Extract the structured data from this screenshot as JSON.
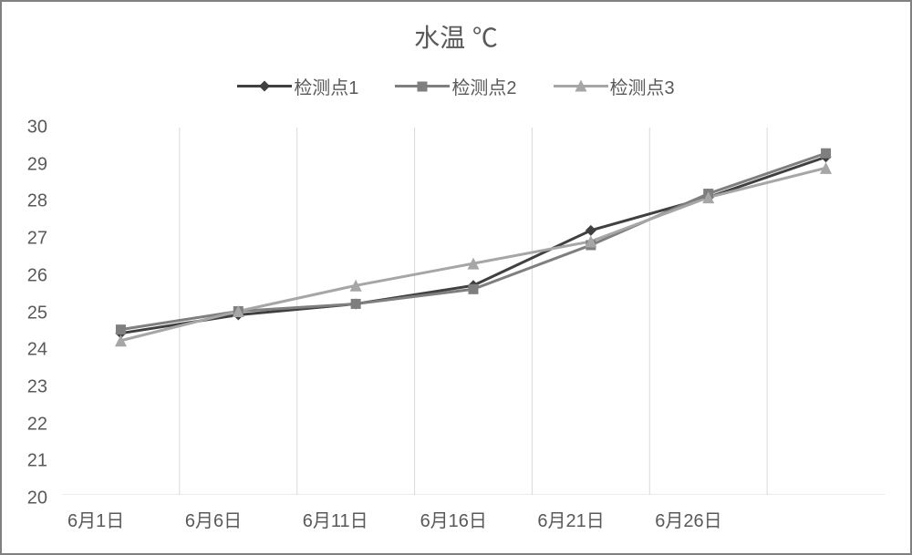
{
  "chart": {
    "type": "line",
    "title": "水温  ℃",
    "title_fontsize": 28,
    "title_color": "#595959",
    "background_color": "#ffffff",
    "frame_border_color": "#808080",
    "frame_border_width": 2,
    "plot": {
      "grid_color": "#d9d9d9",
      "grid_width": 1,
      "axis_line_color": "#d9d9d9",
      "x_categories_index": [
        0,
        1,
        2,
        3,
        4,
        5,
        6
      ],
      "x_tick_labels": [
        "6月1日",
        "6月6日",
        "6月11日",
        "6月16日",
        "6月21日",
        "6月26日"
      ],
      "x_tick_positions": [
        0,
        1,
        2,
        3,
        4,
        5
      ],
      "x_label_fontsize": 20,
      "ylim": [
        20,
        30
      ],
      "yticks": [
        20,
        21,
        22,
        23,
        24,
        25,
        26,
        27,
        28,
        29,
        30
      ],
      "y_label_fontsize": 20,
      "label_color": "#595959"
    },
    "legend": {
      "position": "top-center",
      "fontsize": 20,
      "item_gap": 40,
      "line_segment_width": 60
    },
    "series": [
      {
        "name": "检测点1",
        "color": "#404040",
        "line_width": 3,
        "marker": "diamond",
        "marker_size": 12,
        "marker_color": "#404040",
        "values": [
          24.4,
          24.9,
          25.2,
          25.7,
          27.2,
          28.1,
          29.2
        ]
      },
      {
        "name": "检测点2",
        "color": "#7f7f7f",
        "line_width": 3,
        "marker": "square",
        "marker_size": 11,
        "marker_color": "#7f7f7f",
        "values": [
          24.5,
          25.0,
          25.2,
          25.6,
          26.8,
          28.2,
          29.3
        ]
      },
      {
        "name": "检测点3",
        "color": "#a6a6a6",
        "line_width": 3,
        "marker": "triangle",
        "marker_size": 13,
        "marker_color": "#a6a6a6",
        "values": [
          24.2,
          25.0,
          25.7,
          26.3,
          26.9,
          28.1,
          28.9
        ]
      }
    ]
  }
}
